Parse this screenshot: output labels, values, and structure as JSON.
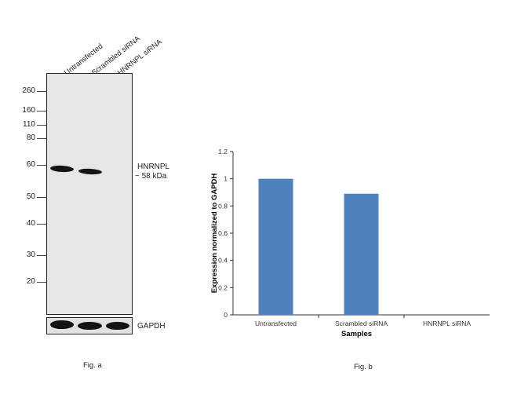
{
  "western_blot": {
    "lanes": [
      "Untransfected",
      "Scrambled siRNA",
      "HNRNPL siRNA"
    ],
    "markers": [
      "260",
      "160",
      "110",
      "80",
      "60",
      "50",
      "40",
      "30",
      "20"
    ],
    "target_label": "HNRNPL",
    "target_size": "~ 58 kDa",
    "loading_control": "GAPDH",
    "caption": "Fig. a"
  },
  "chart_data": {
    "type": "bar",
    "categories": [
      "Untransfected",
      "Scrambled siRNA",
      "HNRNPL siRNA"
    ],
    "values": [
      1.0,
      0.89,
      0.0
    ],
    "xlabel": "Samples",
    "ylabel": "Expression normalized to GAPDH",
    "ylim": [
      0,
      1.2
    ],
    "yticks": [
      "0",
      "0.2",
      "0.4",
      "0.6",
      "0.8",
      "1",
      "1.2"
    ],
    "bar_color": "#4f81bd",
    "grid": false,
    "caption": "Fig. b"
  }
}
